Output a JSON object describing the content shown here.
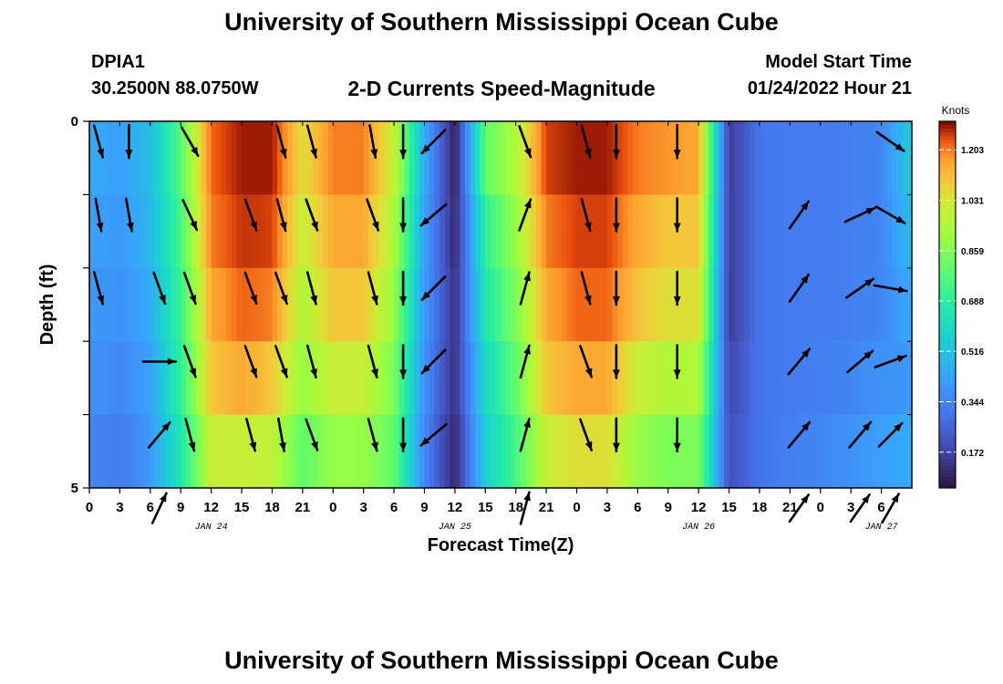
{
  "header": {
    "title": "University of Southern Mississippi Ocean Cube",
    "station": "DPIA1",
    "latlon": "30.2500N  88.0750W",
    "subtitle": "2-D Currents Speed-Magnitude",
    "start_label": "Model Start Time",
    "start_value": "01/24/2022 Hour 21"
  },
  "footer": {
    "title": "University of Southern Mississippi Ocean Cube"
  },
  "chart_data": {
    "type": "heatmap",
    "title": "2-D Currents Speed-Magnitude",
    "xlabel": "Forecast Time(Z)",
    "ylabel": "Depth (ft)",
    "colorbar_label": "Knots",
    "colorbar_ticks": [
      "1.203",
      "1.031",
      "0.859",
      "0.688",
      "0.516",
      "0.344",
      "0.172"
    ],
    "colorbar_range": [
      0.05,
      1.3
    ],
    "xlim": [
      0,
      81
    ],
    "ylim": [
      5,
      0
    ],
    "y_ticks": [
      "0",
      "5"
    ],
    "x_ticks": [
      "0",
      "3",
      "6",
      "9",
      "12",
      "15",
      "18",
      "21",
      "0",
      "3",
      "6",
      "9",
      "12",
      "15",
      "18",
      "21",
      "0",
      "3",
      "6",
      "9",
      "12",
      "15",
      "18",
      "21",
      "0",
      "3",
      "6"
    ],
    "date_labels": [
      {
        "text": "JAN 24",
        "at": 12
      },
      {
        "text": "JAN 25",
        "at": 36
      },
      {
        "text": "JAN 26",
        "at": 60
      },
      {
        "text": "JAN 27",
        "at": 78
      }
    ],
    "depth_levels": [
      0,
      1,
      2,
      3,
      4,
      5
    ],
    "time_key": [
      0,
      3,
      6,
      9,
      12,
      15,
      18,
      21,
      24,
      27,
      30,
      33,
      36,
      39,
      42,
      45,
      48,
      51,
      54,
      57,
      60,
      63,
      66,
      69,
      72,
      75,
      78,
      81
    ],
    "speed_levels": [
      [
        0.45,
        0.42,
        0.5,
        0.78,
        1.22,
        1.28,
        1.28,
        1.05,
        1.2,
        1.2,
        1.0,
        0.45,
        0.08,
        0.8,
        0.95,
        1.25,
        1.28,
        1.28,
        1.2,
        1.18,
        1.15,
        0.15,
        0.3,
        0.32,
        0.32,
        0.33,
        0.35,
        0.55
      ],
      [
        0.42,
        0.4,
        0.48,
        0.75,
        1.2,
        1.26,
        1.25,
        1.0,
        1.15,
        1.15,
        0.95,
        0.42,
        0.1,
        0.7,
        0.9,
        1.2,
        1.25,
        1.25,
        1.15,
        1.1,
        1.1,
        0.15,
        0.3,
        0.32,
        0.32,
        0.33,
        0.35,
        0.5
      ],
      [
        0.4,
        0.38,
        0.45,
        0.72,
        1.15,
        1.22,
        1.2,
        0.95,
        1.1,
        1.1,
        0.9,
        0.4,
        0.12,
        0.65,
        0.85,
        1.15,
        1.22,
        1.22,
        1.1,
        1.05,
        1.05,
        0.15,
        0.3,
        0.32,
        0.32,
        0.33,
        0.35,
        0.45
      ],
      [
        0.38,
        0.35,
        0.42,
        0.7,
        1.1,
        1.15,
        1.1,
        0.9,
        1.0,
        1.0,
        0.85,
        0.38,
        0.12,
        0.6,
        0.8,
        1.1,
        1.15,
        1.15,
        1.0,
        0.95,
        0.95,
        0.18,
        0.3,
        0.32,
        0.33,
        0.35,
        0.38,
        0.4
      ],
      [
        0.35,
        0.32,
        0.4,
        0.65,
        1.0,
        1.0,
        0.98,
        0.8,
        0.9,
        0.9,
        0.8,
        0.35,
        0.1,
        0.55,
        0.75,
        1.0,
        1.05,
        1.05,
        0.9,
        0.85,
        0.85,
        0.2,
        0.3,
        0.33,
        0.35,
        0.38,
        0.42,
        0.45
      ],
      [
        0.32,
        0.3,
        0.38,
        0.6,
        0.85,
        0.85,
        0.85,
        0.7,
        0.75,
        0.75,
        0.7,
        0.3,
        0.08,
        0.5,
        0.7,
        0.9,
        0.95,
        0.9,
        0.8,
        0.75,
        0.75,
        0.22,
        0.3,
        0.35,
        0.38,
        0.42,
        0.48,
        0.45
      ]
    ],
    "arrow_times": [
      0,
      3,
      6,
      9,
      12,
      15,
      18,
      21,
      24,
      27,
      30,
      33,
      36,
      39,
      42,
      45,
      48,
      51,
      54,
      57,
      60,
      63,
      66,
      69,
      72,
      75,
      78,
      81
    ],
    "arrow_depths": [
      0.5,
      1.5,
      2.5,
      3.5,
      4.5,
      5.5
    ],
    "arrow_directions_deg": [
      [
        165,
        180,
        null,
        150,
        null,
        null,
        165,
        165,
        null,
        170,
        180,
        225,
        null,
        null,
        160,
        null,
        165,
        180,
        null,
        180,
        null,
        null,
        null,
        null,
        null,
        null,
        125,
        null
      ],
      [
        170,
        170,
        null,
        155,
        null,
        160,
        165,
        160,
        null,
        160,
        180,
        230,
        null,
        null,
        20,
        null,
        165,
        180,
        null,
        180,
        null,
        null,
        null,
        35,
        null,
        65,
        120,
        null
      ],
      [
        165,
        null,
        160,
        160,
        null,
        160,
        160,
        165,
        null,
        165,
        180,
        225,
        null,
        null,
        15,
        null,
        165,
        180,
        null,
        180,
        null,
        null,
        null,
        35,
        null,
        55,
        100,
        null
      ],
      [
        null,
        null,
        90,
        160,
        null,
        160,
        160,
        165,
        null,
        165,
        180,
        225,
        null,
        null,
        15,
        null,
        160,
        180,
        null,
        180,
        null,
        null,
        null,
        40,
        null,
        50,
        70,
        null
      ],
      [
        null,
        null,
        40,
        165,
        null,
        165,
        170,
        160,
        null,
        165,
        180,
        230,
        null,
        null,
        15,
        null,
        160,
        180,
        null,
        180,
        null,
        null,
        null,
        40,
        null,
        40,
        45,
        null
      ],
      [
        null,
        null,
        25,
        null,
        null,
        null,
        null,
        null,
        null,
        null,
        null,
        null,
        null,
        null,
        15,
        null,
        null,
        null,
        null,
        null,
        null,
        null,
        null,
        35,
        null,
        35,
        30,
        null
      ]
    ]
  }
}
